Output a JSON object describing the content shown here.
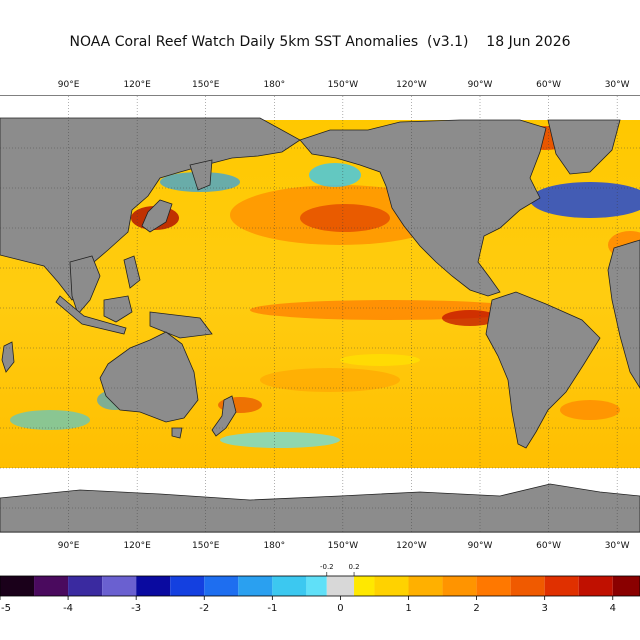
{
  "title": "NOAA Coral Reef Watch Daily 5km SST Anomalies  (v3.1)    18 Jun 2026",
  "map": {
    "projection": "equirectangular, Pacific-centered",
    "lon_range": [
      60,
      340
    ],
    "lat_range": [
      -70,
      86
    ],
    "land_color": "#8c8c8c",
    "ice_color": "#ffffff",
    "grid": true,
    "lon_labels": [
      "90°E",
      "120°E",
      "150°E",
      "180°",
      "150°W",
      "120°W",
      "90°W",
      "60°W",
      "30°W"
    ],
    "lon_values": [
      90,
      120,
      150,
      180,
      210,
      240,
      270,
      300,
      330
    ]
  },
  "colorbar": {
    "ticks": [
      "-5",
      "-4",
      "-3",
      "-2",
      "-1",
      "0",
      "1",
      "2",
      "3",
      "4"
    ],
    "tick_values": [
      -5,
      -4,
      -3,
      -2,
      -1,
      0,
      1,
      2,
      3,
      4
    ],
    "small_ticks": [
      "-0.2",
      "0.2"
    ],
    "small_tick_values": [
      -0.2,
      0.2
    ],
    "range": [
      -5,
      4.4
    ],
    "segments": [
      {
        "from": -5.0,
        "to": -4.5,
        "color": "#1a001a"
      },
      {
        "from": -4.5,
        "to": -4.0,
        "color": "#4a0a5e"
      },
      {
        "from": -4.0,
        "to": -3.5,
        "color": "#3a2aa0"
      },
      {
        "from": -3.5,
        "to": -3.0,
        "color": "#6a60d0"
      },
      {
        "from": -3.0,
        "to": -2.5,
        "color": "#0a0aa0"
      },
      {
        "from": -2.5,
        "to": -2.0,
        "color": "#1440e0"
      },
      {
        "from": -2.0,
        "to": -1.5,
        "color": "#1e6ef0"
      },
      {
        "from": -1.5,
        "to": -1.0,
        "color": "#2aa0f0"
      },
      {
        "from": -1.0,
        "to": -0.5,
        "color": "#3cc8f0"
      },
      {
        "from": -0.5,
        "to": -0.2,
        "color": "#60e0f8"
      },
      {
        "from": -0.2,
        "to": 0.2,
        "color": "#d8d8d8"
      },
      {
        "from": 0.2,
        "to": 0.5,
        "color": "#ffe800"
      },
      {
        "from": 0.5,
        "to": 1.0,
        "color": "#ffd200"
      },
      {
        "from": 1.0,
        "to": 1.5,
        "color": "#ffb000"
      },
      {
        "from": 1.5,
        "to": 2.0,
        "color": "#ff9400"
      },
      {
        "from": 2.0,
        "to": 2.5,
        "color": "#ff7800"
      },
      {
        "from": 2.5,
        "to": 3.0,
        "color": "#f05a00"
      },
      {
        "from": 3.0,
        "to": 3.5,
        "color": "#e03000"
      },
      {
        "from": 3.5,
        "to": 4.0,
        "color": "#c01000"
      },
      {
        "from": 4.0,
        "to": 4.4,
        "color": "#8a0000"
      }
    ]
  }
}
